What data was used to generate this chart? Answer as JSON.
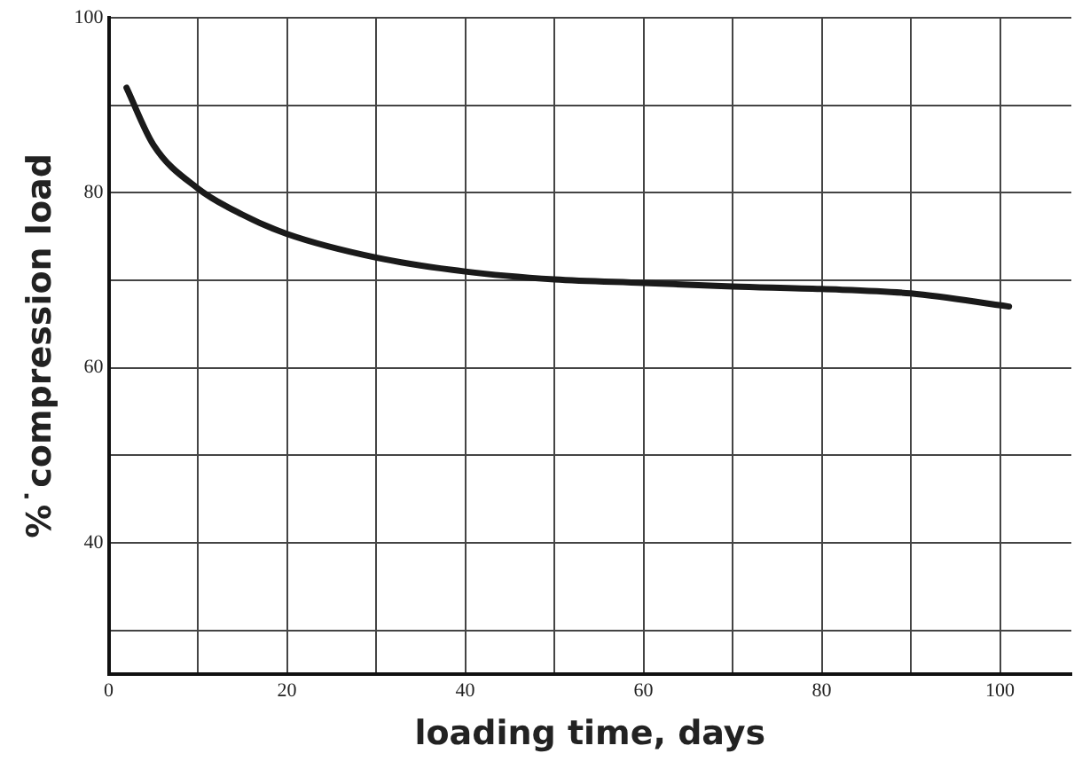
{
  "chart_data": {
    "type": "line",
    "xlabel": "loading time, days",
    "ylabel": "%˙compression load",
    "x": [
      2,
      5,
      10,
      15,
      20,
      30,
      40,
      50,
      60,
      70,
      80,
      90,
      101
    ],
    "series": [
      {
        "color": "#1a1a1a",
        "values": [
          92,
          85.5,
          80.5,
          77.5,
          75.3,
          72.6,
          71,
          70.1,
          69.7,
          69.3,
          69,
          68.5,
          67
        ]
      }
    ],
    "xlim": [
      0,
      108
    ],
    "ylim": [
      25,
      100
    ],
    "xticks": [
      0,
      {
        "value": 10,
        "label": null
      },
      20,
      {
        "value": 30,
        "label": null
      },
      40,
      {
        "value": 50,
        "label": null
      },
      60,
      {
        "value": 70,
        "label": null
      },
      80,
      {
        "value": 90,
        "label": null
      },
      100
    ],
    "yticks": [
      {
        "value": 30,
        "label": null
      },
      40,
      {
        "value": 50,
        "label": null
      },
      60,
      {
        "value": 70,
        "label": null
      },
      80,
      {
        "value": 90,
        "label": null
      },
      100
    ],
    "grid": true,
    "legend": false,
    "marker": "none",
    "line_style": "solid"
  }
}
